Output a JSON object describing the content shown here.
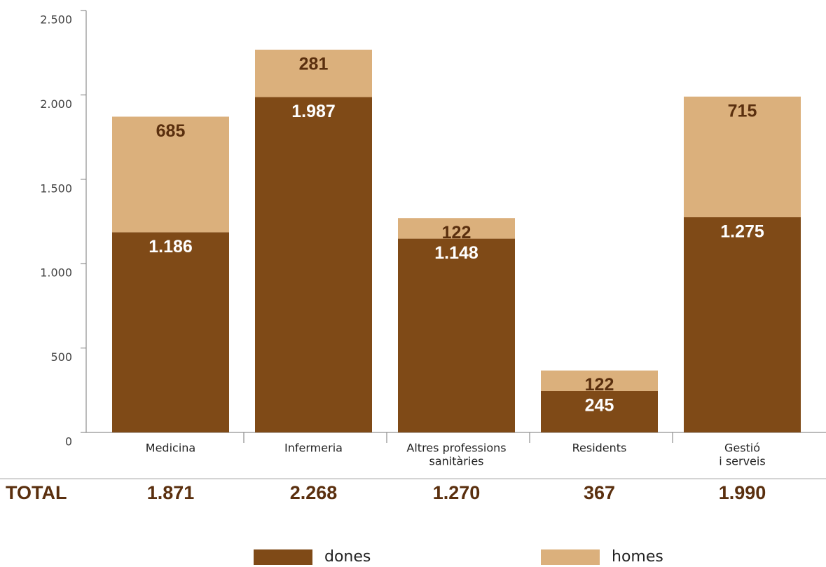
{
  "chart_data": {
    "type": "stacked_bar",
    "categories": [
      [
        "Medicina"
      ],
      [
        "Infermeria"
      ],
      [
        "Altres professions",
        "sanitàries"
      ],
      [
        "Residents"
      ],
      [
        "Gestió",
        "i serveis"
      ]
    ],
    "series": [
      {
        "name": "dones",
        "color": "#7f4a17",
        "label_color": "#ffffff",
        "values": [
          1186,
          1987,
          1148,
          245,
          1275
        ],
        "value_labels": [
          "1.186",
          "1.987",
          "1.148",
          "245",
          "1.275"
        ]
      },
      {
        "name": "homes",
        "color": "#dbb07c",
        "label_color": "#5a2f0e",
        "values": [
          685,
          281,
          122,
          122,
          715
        ],
        "value_labels": [
          "685",
          "281",
          "122",
          "122",
          "715"
        ]
      }
    ],
    "totals": {
      "label": "TOTAL",
      "values": [
        1871,
        2268,
        1270,
        367,
        1990
      ],
      "value_labels": [
        "1.871",
        "2.268",
        "1.270",
        "367",
        "1.990"
      ]
    },
    "ylim": [
      0,
      2500
    ],
    "yticks": [
      0,
      500,
      {
        "value": 1000,
        "label": "1.000"
      },
      {
        "value": 1500,
        "label": "1.500"
      },
      {
        "value": 2000,
        "label": "2.000"
      },
      {
        "value": 2500,
        "label": "2.500"
      }
    ]
  }
}
